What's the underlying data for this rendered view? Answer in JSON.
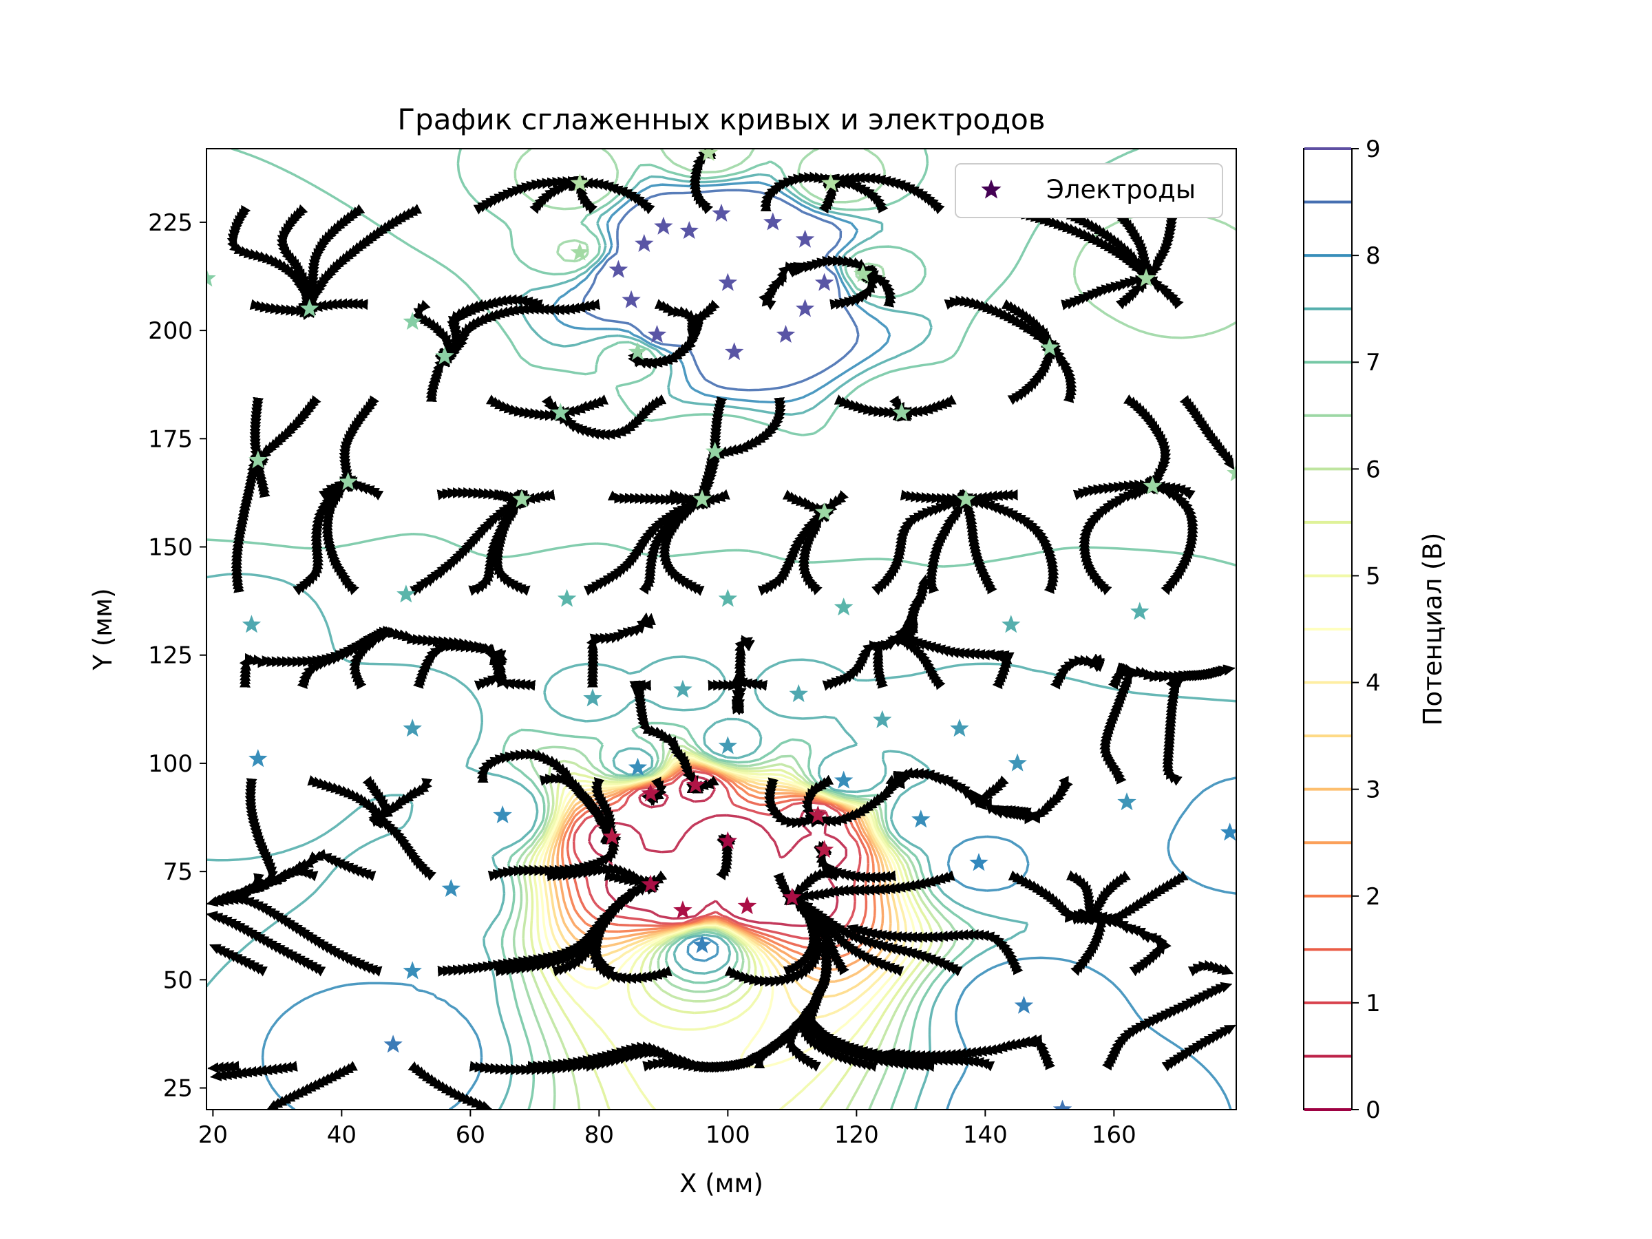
{
  "chart_data": {
    "type": "contour",
    "title": "График сглаженных кривых и электродов",
    "xlabel": "X (мм)",
    "ylabel": "Y (мм)",
    "xlim": [
      19,
      179
    ],
    "ylim": [
      20,
      242
    ],
    "xticks": [
      20,
      40,
      60,
      80,
      100,
      120,
      140,
      160
    ],
    "yticks": [
      25,
      50,
      75,
      100,
      125,
      150,
      175,
      200,
      225
    ],
    "grid": false,
    "legend": {
      "position": "top-right",
      "entries": [
        {
          "label": "Электроды",
          "marker": "star",
          "color": "#440154"
        }
      ]
    },
    "colorbar": {
      "label": "Потенциал (В)",
      "range": [
        0,
        9
      ],
      "ticks": [
        0,
        1,
        2,
        3,
        4,
        5,
        6,
        7,
        8,
        9
      ],
      "levels": [
        0,
        0.5,
        1,
        1.5,
        2,
        2.5,
        3,
        3.5,
        4,
        4.5,
        5,
        5.5,
        6,
        6.5,
        7,
        7.5,
        8,
        8.5,
        9
      ],
      "colormap": "Spectral"
    },
    "electrodes": [
      {
        "x": 19,
        "y": 212,
        "v": 6.8
      },
      {
        "x": 35,
        "y": 205,
        "v": 6.7
      },
      {
        "x": 51,
        "y": 202,
        "v": 6.8
      },
      {
        "x": 56,
        "y": 194,
        "v": 6.7
      },
      {
        "x": 27,
        "y": 170,
        "v": 6.6
      },
      {
        "x": 41,
        "y": 165,
        "v": 6.6
      },
      {
        "x": 68,
        "y": 161,
        "v": 6.5
      },
      {
        "x": 74,
        "y": 181,
        "v": 6.7
      },
      {
        "x": 77,
        "y": 234,
        "v": 6.2
      },
      {
        "x": 77,
        "y": 218,
        "v": 6.4
      },
      {
        "x": 97,
        "y": 241,
        "v": 6.2
      },
      {
        "x": 116,
        "y": 234,
        "v": 6.2
      },
      {
        "x": 121,
        "y": 213,
        "v": 6.4
      },
      {
        "x": 86,
        "y": 195,
        "v": 6.6
      },
      {
        "x": 98,
        "y": 172,
        "v": 6.6
      },
      {
        "x": 127,
        "y": 181,
        "v": 6.6
      },
      {
        "x": 96,
        "y": 161,
        "v": 6.5
      },
      {
        "x": 115,
        "y": 158,
        "v": 6.5
      },
      {
        "x": 137,
        "y": 161,
        "v": 6.5
      },
      {
        "x": 165,
        "y": 212,
        "v": 6.4
      },
      {
        "x": 150,
        "y": 196,
        "v": 6.6
      },
      {
        "x": 166,
        "y": 164,
        "v": 6.5
      },
      {
        "x": 179,
        "y": 167,
        "v": 6.5
      },
      {
        "x": 83,
        "y": 214,
        "v": 8.9
      },
      {
        "x": 85,
        "y": 207,
        "v": 8.9
      },
      {
        "x": 87,
        "y": 220,
        "v": 8.9
      },
      {
        "x": 90,
        "y": 224,
        "v": 8.9
      },
      {
        "x": 89,
        "y": 199,
        "v": 8.9
      },
      {
        "x": 94,
        "y": 223,
        "v": 8.9
      },
      {
        "x": 99,
        "y": 227,
        "v": 8.9
      },
      {
        "x": 100,
        "y": 211,
        "v": 8.9
      },
      {
        "x": 101,
        "y": 195,
        "v": 8.9
      },
      {
        "x": 107,
        "y": 225,
        "v": 8.9
      },
      {
        "x": 109,
        "y": 199,
        "v": 8.9
      },
      {
        "x": 112,
        "y": 221,
        "v": 8.9
      },
      {
        "x": 112,
        "y": 205,
        "v": 8.9
      },
      {
        "x": 115,
        "y": 211,
        "v": 8.9
      },
      {
        "x": 26,
        "y": 132,
        "v": 7.6
      },
      {
        "x": 27,
        "y": 101,
        "v": 8.0
      },
      {
        "x": 50,
        "y": 139,
        "v": 7.4
      },
      {
        "x": 51,
        "y": 108,
        "v": 7.8
      },
      {
        "x": 65,
        "y": 88,
        "v": 8.0
      },
      {
        "x": 57,
        "y": 71,
        "v": 8.0
      },
      {
        "x": 51,
        "y": 52,
        "v": 8.0
      },
      {
        "x": 48,
        "y": 35,
        "v": 8.3
      },
      {
        "x": 75,
        "y": 138,
        "v": 7.4
      },
      {
        "x": 79,
        "y": 115,
        "v": 7.6
      },
      {
        "x": 93,
        "y": 117,
        "v": 7.6
      },
      {
        "x": 86,
        "y": 99,
        "v": 8.0
      },
      {
        "x": 100,
        "y": 138,
        "v": 7.4
      },
      {
        "x": 100,
        "y": 104,
        "v": 7.8
      },
      {
        "x": 111,
        "y": 116,
        "v": 7.6
      },
      {
        "x": 118,
        "y": 136,
        "v": 7.4
      },
      {
        "x": 124,
        "y": 110,
        "v": 7.6
      },
      {
        "x": 136,
        "y": 108,
        "v": 7.8
      },
      {
        "x": 118,
        "y": 96,
        "v": 8.0
      },
      {
        "x": 130,
        "y": 87,
        "v": 8.0
      },
      {
        "x": 139,
        "y": 77,
        "v": 8.1
      },
      {
        "x": 145,
        "y": 100,
        "v": 7.9
      },
      {
        "x": 144,
        "y": 132,
        "v": 7.5
      },
      {
        "x": 164,
        "y": 135,
        "v": 7.5
      },
      {
        "x": 162,
        "y": 91,
        "v": 7.9
      },
      {
        "x": 178,
        "y": 84,
        "v": 8.1
      },
      {
        "x": 146,
        "y": 44,
        "v": 8.2
      },
      {
        "x": 152,
        "y": 20,
        "v": 8.4
      },
      {
        "x": 96,
        "y": 58,
        "v": 8.2
      },
      {
        "x": 88,
        "y": 72,
        "v": 0.2
      },
      {
        "x": 93,
        "y": 66,
        "v": 0.2
      },
      {
        "x": 100,
        "y": 82,
        "v": 0.1
      },
      {
        "x": 103,
        "y": 67,
        "v": 0.2
      },
      {
        "x": 110,
        "y": 69,
        "v": 0.2
      },
      {
        "x": 88,
        "y": 93,
        "v": 0.3
      },
      {
        "x": 95,
        "y": 95,
        "v": 0.3
      },
      {
        "x": 114,
        "y": 88,
        "v": 0.4
      },
      {
        "x": 82,
        "y": 83,
        "v": 0.4
      },
      {
        "x": 115,
        "y": 80,
        "v": 0.4
      }
    ]
  }
}
